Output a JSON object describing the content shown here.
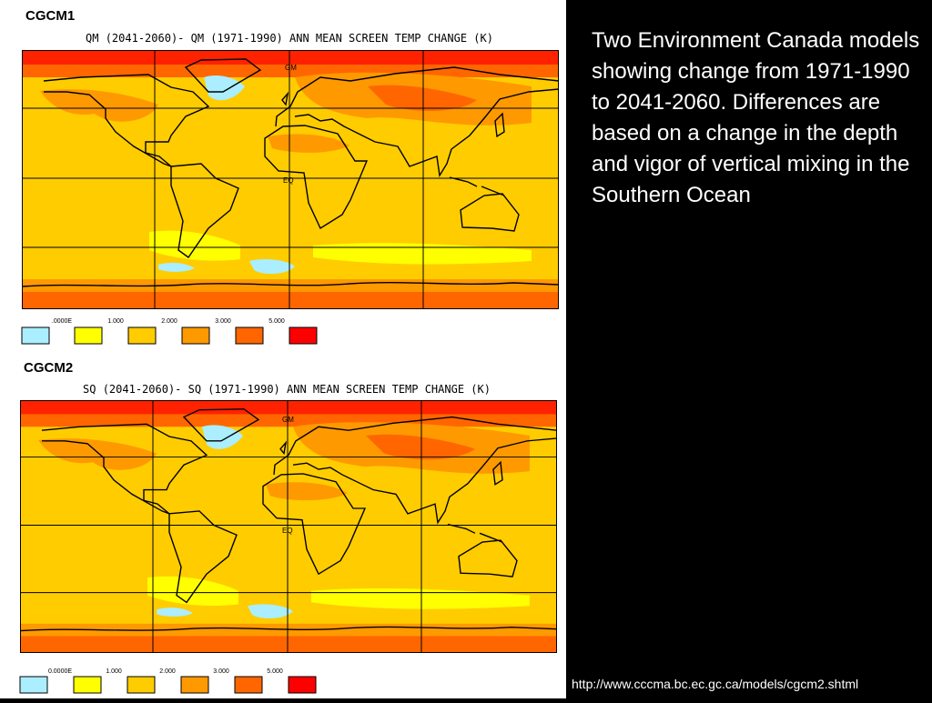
{
  "panels": [
    {
      "label": "CGCM1",
      "title": "QM (2041-2060)- QM (1971-1990) ANN MEAN SCREEN TEMP CHANGE (K)",
      "map_labels": [
        "GM",
        "EQ"
      ],
      "legend": [
        ".0000E",
        "1.000",
        "2.000",
        "3.000",
        "5.000"
      ]
    },
    {
      "label": "CGCM2",
      "title": "SQ (2041-2060)- SQ (1971-1990) ANN MEAN SCREEN TEMP CHANGE (K)",
      "map_labels": [
        "GM",
        "EQ"
      ],
      "legend": [
        "0.0000E",
        "1.000",
        "2.000",
        "3.000",
        "5.000"
      ]
    }
  ],
  "description": "Two Environment Canada models showing change from 1971-1990 to 2041-2060.  Differences are based on a change in the depth and vigor of vertical mixing in the Southern Ocean",
  "source_url": "http://www.cccma.bc.ec.gc.ca/models/cgcm2.shtml"
}
